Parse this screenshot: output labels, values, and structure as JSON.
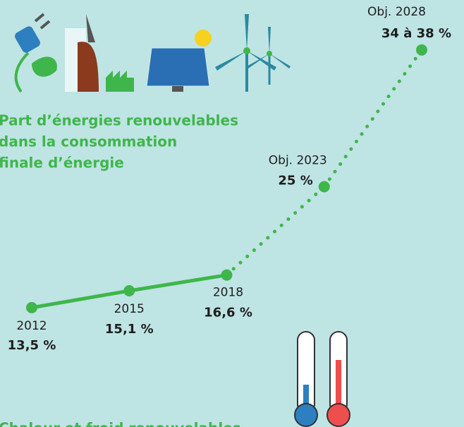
{
  "chart_data": {
    "type": "line",
    "title": [
      "Part d’énergies renouvelables",
      "dans la consommation",
      "finale d’énergie"
    ],
    "categories": [
      "2012",
      "2015",
      "2018",
      "Obj. 2023",
      "Obj. 2028"
    ],
    "values": [
      13.5,
      15.1,
      16.6,
      25,
      38
    ],
    "value_labels": [
      "13,5 %",
      "15,1 %",
      "16,6 %",
      "25 %",
      "34 à 38 %"
    ],
    "segment_styles": [
      "solid",
      "solid",
      "dotted",
      "dotted"
    ],
    "color": "#3fb64b",
    "ylim": [
      10,
      40
    ],
    "footer": "Chaleur et froid renouvelables"
  }
}
